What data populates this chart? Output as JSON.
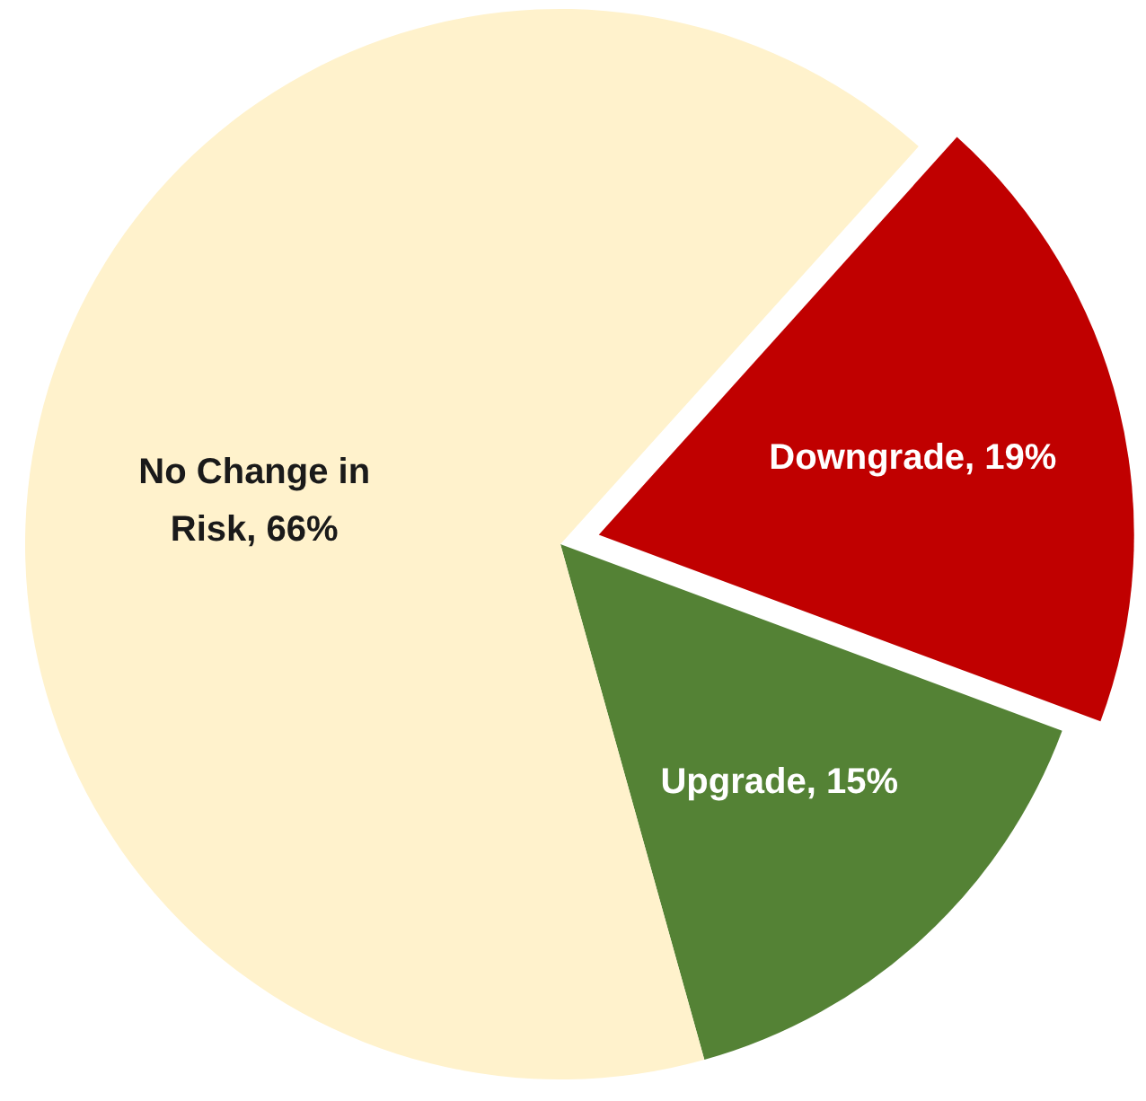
{
  "chart_data": {
    "type": "pie",
    "categories": [
      "Downgrade",
      "Upgrade",
      "No Change in Risk"
    ],
    "values": [
      19,
      15,
      66
    ],
    "colors": [
      "#c00000",
      "#548235",
      "#fff2cc"
    ],
    "value_labels": [
      "19%",
      "15%",
      "66%"
    ]
  }
}
